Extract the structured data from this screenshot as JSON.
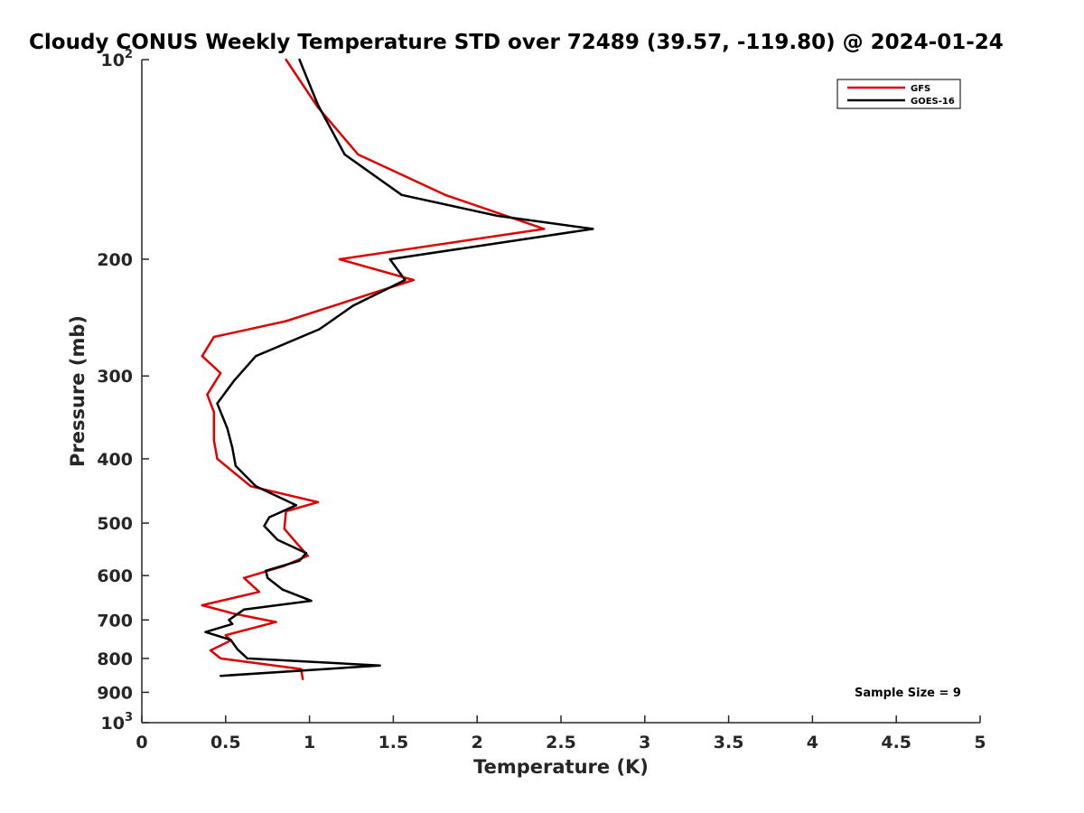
{
  "chart_data": {
    "type": "line",
    "title": "Cloudy CONUS Weekly Temperature STD over 72489 (39.57, -119.80) @ 2024-01-24",
    "xlabel": "Temperature (K)",
    "ylabel": "Pressure (mb)",
    "xlim": [
      0,
      5
    ],
    "ylim": [
      1000,
      100
    ],
    "y_scale": "log",
    "y_reversed": true,
    "x_ticks": [
      0,
      0.5,
      1,
      1.5,
      2,
      2.5,
      3,
      3.5,
      4,
      4.5,
      5
    ],
    "x_tick_labels": [
      "0",
      "0.5",
      "1",
      "1.5",
      "2",
      "2.5",
      "3",
      "3.5",
      "4",
      "4.5",
      "5"
    ],
    "y_ticks": [
      100,
      200,
      300,
      400,
      500,
      600,
      700,
      800,
      900,
      1000
    ],
    "y_tick_labels": [
      {
        "base": "10",
        "exp": "2"
      },
      {
        "base": "200",
        "exp": ""
      },
      {
        "base": "300",
        "exp": ""
      },
      {
        "base": "400",
        "exp": ""
      },
      {
        "base": "500",
        "exp": ""
      },
      {
        "base": "600",
        "exp": ""
      },
      {
        "base": "700",
        "exp": ""
      },
      {
        "base": "800",
        "exp": ""
      },
      {
        "base": "900",
        "exp": ""
      },
      {
        "base": "10",
        "exp": "3"
      }
    ],
    "grid": false,
    "legend_position": "top-right",
    "series": [
      {
        "name": "GFS",
        "color": "#e00000",
        "points": [
          [
            0.86,
            100
          ],
          [
            1.05,
            118
          ],
          [
            1.29,
            139
          ],
          [
            1.81,
            160
          ],
          [
            2.4,
            180
          ],
          [
            1.18,
            200
          ],
          [
            1.62,
            215
          ],
          [
            0.86,
            248
          ],
          [
            0.43,
            262
          ],
          [
            0.36,
            280
          ],
          [
            0.47,
            297
          ],
          [
            0.39,
            320
          ],
          [
            0.43,
            340
          ],
          [
            0.43,
            375
          ],
          [
            0.45,
            400
          ],
          [
            0.65,
            440
          ],
          [
            1.05,
            465
          ],
          [
            0.86,
            480
          ],
          [
            0.85,
            510
          ],
          [
            0.92,
            535
          ],
          [
            0.99,
            560
          ],
          [
            0.85,
            580
          ],
          [
            0.61,
            605
          ],
          [
            0.7,
            635
          ],
          [
            0.36,
            665
          ],
          [
            0.55,
            685
          ],
          [
            0.8,
            705
          ],
          [
            0.5,
            738
          ],
          [
            0.53,
            752
          ],
          [
            0.41,
            778
          ],
          [
            0.47,
            800
          ],
          [
            0.95,
            830
          ],
          [
            0.96,
            860
          ]
        ]
      },
      {
        "name": "GOES-16",
        "color": "#000000",
        "points": [
          [
            0.94,
            100
          ],
          [
            1.05,
            117
          ],
          [
            1.21,
            139
          ],
          [
            1.55,
            160
          ],
          [
            2.12,
            172
          ],
          [
            2.69,
            180
          ],
          [
            1.48,
            200
          ],
          [
            1.57,
            215
          ],
          [
            1.26,
            235
          ],
          [
            1.06,
            255
          ],
          [
            0.68,
            280
          ],
          [
            0.55,
            305
          ],
          [
            0.45,
            330
          ],
          [
            0.51,
            360
          ],
          [
            0.54,
            385
          ],
          [
            0.56,
            410
          ],
          [
            0.68,
            440
          ],
          [
            0.92,
            470
          ],
          [
            0.76,
            490
          ],
          [
            0.73,
            505
          ],
          [
            0.81,
            530
          ],
          [
            0.98,
            555
          ],
          [
            0.94,
            570
          ],
          [
            0.74,
            590
          ],
          [
            0.75,
            605
          ],
          [
            0.84,
            630
          ],
          [
            1.01,
            655
          ],
          [
            0.61,
            675
          ],
          [
            0.52,
            700
          ],
          [
            0.54,
            710
          ],
          [
            0.38,
            730
          ],
          [
            0.53,
            750
          ],
          [
            0.57,
            775
          ],
          [
            0.63,
            800
          ],
          [
            1.42,
            820
          ],
          [
            0.47,
            850
          ]
        ]
      }
    ],
    "annotation": "Sample Size = 9"
  }
}
